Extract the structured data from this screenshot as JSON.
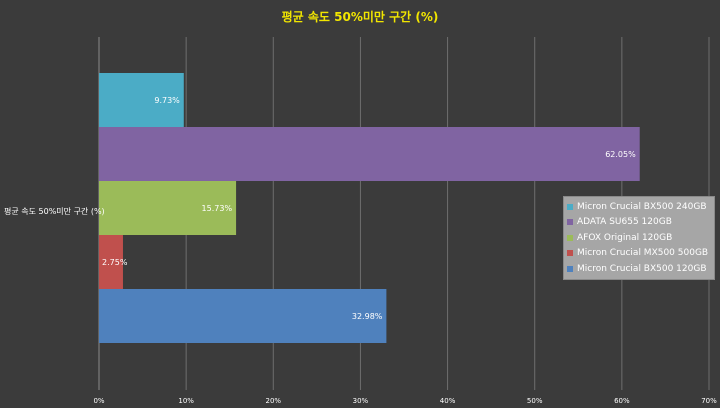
{
  "chart_data": {
    "type": "bar",
    "orientation": "horizontal",
    "title": "평균 속도 50%미만 구간 (%)",
    "categories": [
      "평균 속도 50%미만 구간 (%)"
    ],
    "series": [
      {
        "name": "Micron Crucial BX500 240GB",
        "values": [
          9.73
        ],
        "label": "9.73%",
        "color": "#4bacc6"
      },
      {
        "name": "ADATA SU655 120GB",
        "values": [
          62.05
        ],
        "label": "62.05%",
        "color": "#8064a2"
      },
      {
        "name": "AFOX Original 120GB",
        "values": [
          15.73
        ],
        "label": "15.73%",
        "color": "#9bbb59"
      },
      {
        "name": "Micron Crucial MX500 500GB",
        "values": [
          2.75
        ],
        "label": "2.75%",
        "color": "#c0504d"
      },
      {
        "name": "Micron Crucial BX500 120GB",
        "values": [
          32.98
        ],
        "label": "32.98%",
        "color": "#4f81bd"
      }
    ],
    "xlim": [
      0,
      70
    ],
    "xticks": [
      "0%",
      "10%",
      "20%",
      "30%",
      "40%",
      "50%",
      "60%",
      "70%"
    ],
    "grid": true,
    "legend_position": "right",
    "colors": {
      "background": "#3b3b3b",
      "title": "#f2e600",
      "grid": "#6e6e6e",
      "legend_bg": "#a6a6a6"
    }
  }
}
